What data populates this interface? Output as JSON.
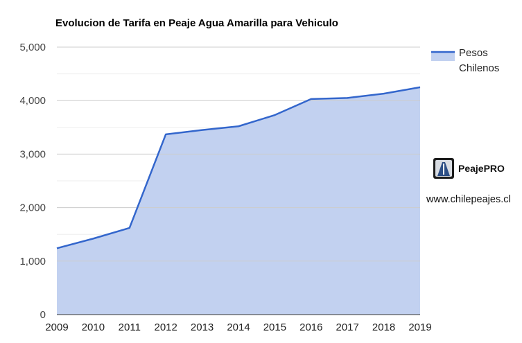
{
  "chart_data": {
    "type": "area",
    "title": "Evolucion de Tarifa en Peaje Agua Amarilla para Vehiculo",
    "xlabel": "",
    "ylabel": "",
    "x": [
      "2009",
      "2010",
      "2011",
      "2012",
      "2013",
      "2014",
      "2015",
      "2016",
      "2017",
      "2018",
      "2019"
    ],
    "series": [
      {
        "name": "Pesos Chilenos",
        "values": [
          1240,
          1420,
          1620,
          3370,
          3450,
          3520,
          3730,
          4030,
          4050,
          4130,
          4250
        ]
      }
    ],
    "ylim": [
      0,
      5000
    ],
    "yticks": [
      0,
      1000,
      2000,
      3000,
      4000,
      5000
    ],
    "ytick_labels": [
      "0",
      "1,000",
      "2,000",
      "3,000",
      "4,000",
      "5,000"
    ],
    "grid": true,
    "legend": {
      "position": "right",
      "lines": [
        "Pesos",
        "Chilenos"
      ]
    },
    "colors": {
      "line": "#3366cc",
      "fill": "#c2d1f0",
      "grid": "#cccccc",
      "minor_grid": "#eeeeee"
    }
  },
  "branding": {
    "logo_text": "PeajePRO",
    "site": "www.chilepeajes.cl"
  }
}
